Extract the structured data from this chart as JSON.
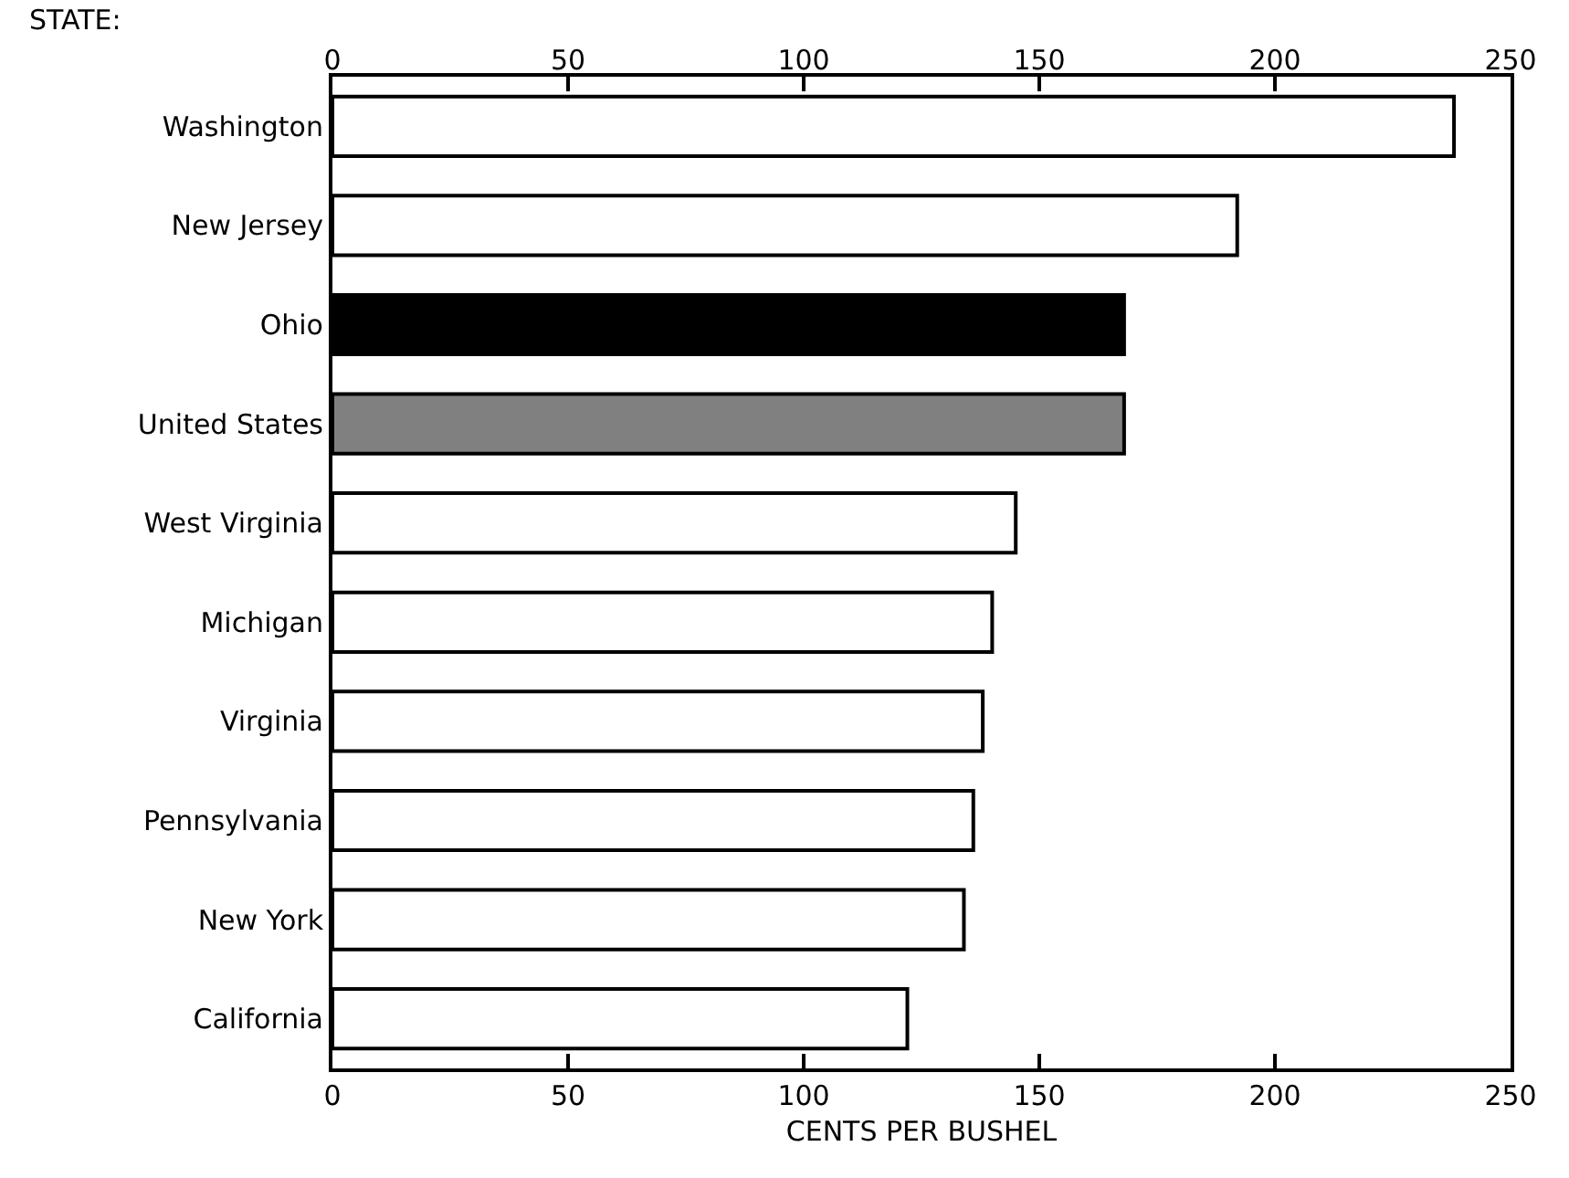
{
  "chart_data": {
    "type": "bar",
    "orientation": "horizontal",
    "ylabel": "STATE:",
    "xlabel": "CENTS PER BUSHEL",
    "categories": [
      "Washington",
      "New Jersey",
      "Ohio",
      "United States",
      "West Virginia",
      "Michigan",
      "Virginia",
      "Pennsylvania",
      "New York",
      "California"
    ],
    "values": [
      238,
      192,
      168,
      168,
      145,
      140,
      138,
      136,
      134,
      122
    ],
    "colors": [
      "#ffffff",
      "#ffffff",
      "#000000",
      "#808080",
      "#ffffff",
      "#ffffff",
      "#ffffff",
      "#ffffff",
      "#ffffff",
      "#ffffff"
    ],
    "xlim": [
      0,
      250
    ],
    "xticks": [
      0,
      50,
      100,
      150,
      200,
      250
    ],
    "x2lim": [
      0,
      250
    ],
    "x2ticks": [
      0,
      50,
      100,
      150,
      200,
      250
    ],
    "grid": false
  }
}
